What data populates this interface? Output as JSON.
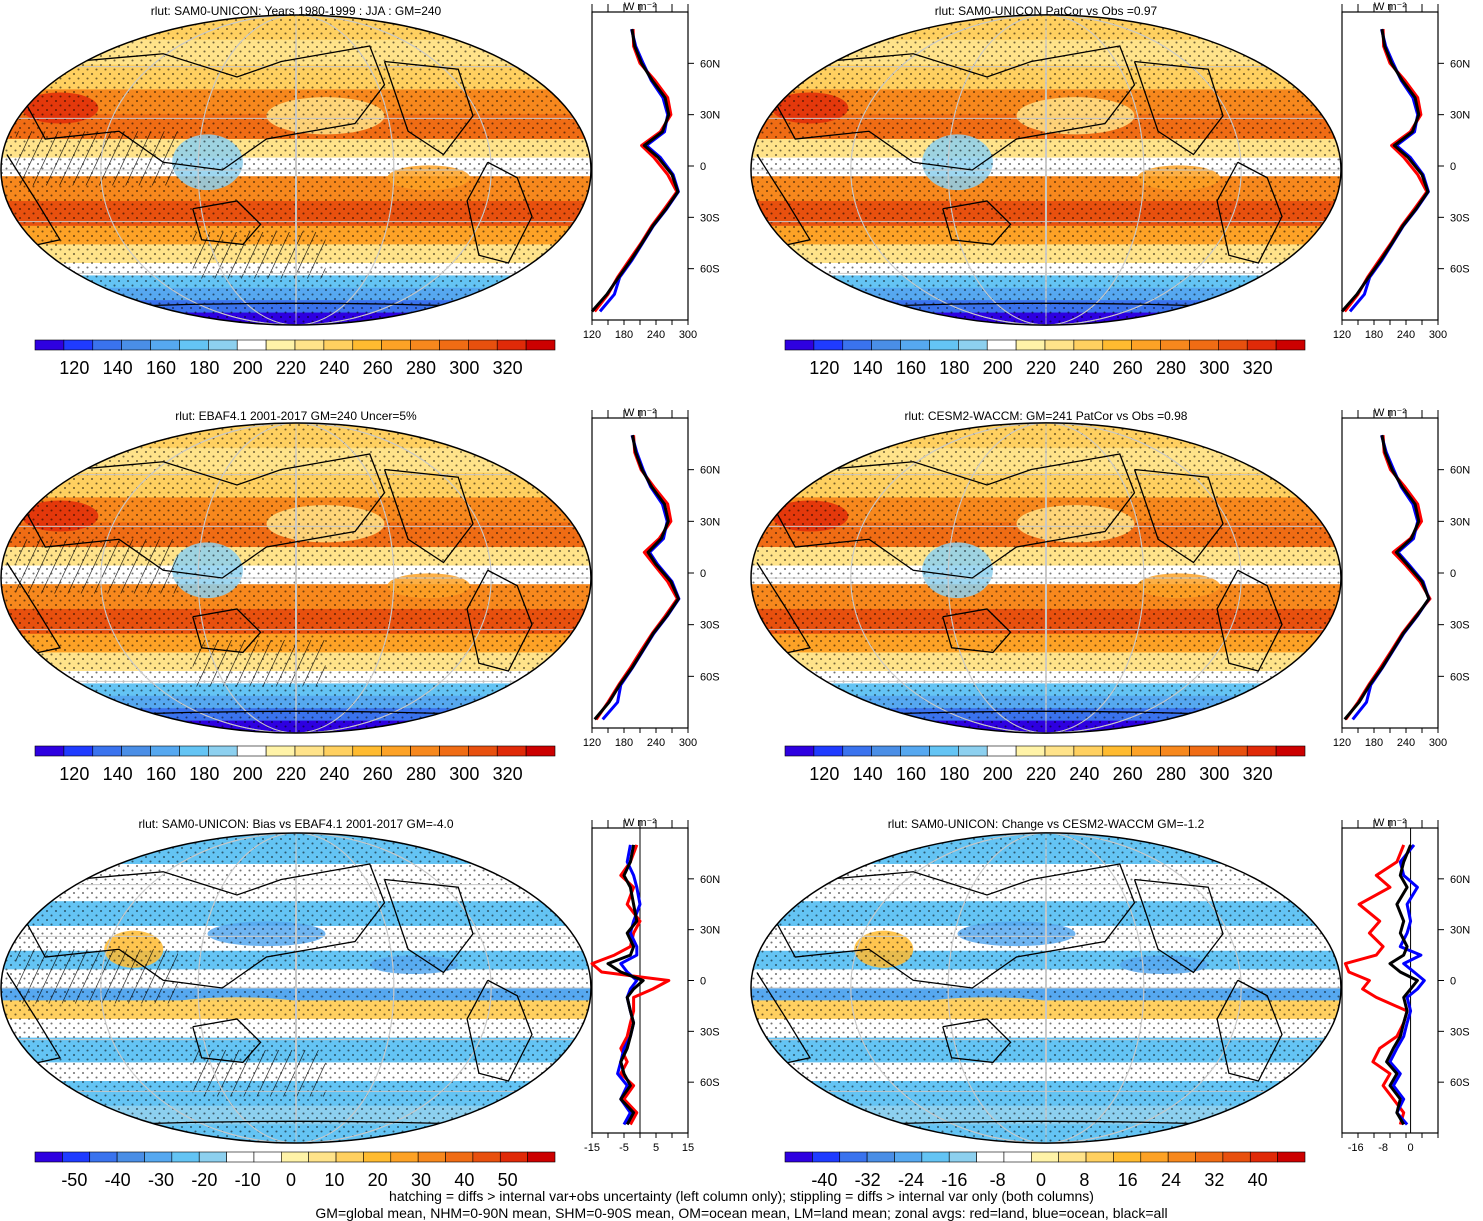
{
  "variable": "rlut",
  "units_label": "W m⁻²",
  "footer": {
    "line1": "hatching = diffs > internal var+obs uncertainty (left column only); stippling = diffs > internal var only (both columns)",
    "line2": "GM=global mean, NHM=0-90N mean, SHM=0-90S mean, OM=ocean mean, LM=land mean; zonal avgs: red=land, blue=ocean, black=all"
  },
  "colors": {
    "land": "#ff0000",
    "ocean": "#0000ff",
    "all": "#000000",
    "abs_scale": [
      "#2e00e0",
      "#1f3bff",
      "#3a73ee",
      "#4a8ee6",
      "#56a8f0",
      "#64c4f4",
      "#8dd0ef",
      "#ffffff",
      "#fff3a8",
      "#ffe38a",
      "#ffd060",
      "#ffbb30",
      "#fda226",
      "#f7881d",
      "#f06c14",
      "#e8500e",
      "#e02a08",
      "#cc0000"
    ],
    "diff_scale": [
      "#2e00e0",
      "#1f3bff",
      "#3a73ee",
      "#4a8ee6",
      "#56a8f0",
      "#64c4f4",
      "#8dd0ef",
      "#ffffff",
      "#ffffff",
      "#fff3a8",
      "#ffe38a",
      "#ffd060",
      "#ffbb30",
      "#fda226",
      "#f7881d",
      "#f06c14",
      "#e8500e",
      "#e02a08",
      "#cc0000"
    ]
  },
  "lat_ticks": [
    "60N",
    "30N",
    "0",
    "30S",
    "60S"
  ],
  "chart_data": [
    {
      "type": "heatmap",
      "title": "rlut: SAM0-UNICON: Years 1980-1999 : JJA : GM=240",
      "colorbar": {
        "scale": "abs",
        "labels": [
          "120",
          "140",
          "160",
          "180",
          "200",
          "220",
          "240",
          "260",
          "280",
          "300",
          "320"
        ]
      },
      "zonal": {
        "xticks": [
          "120",
          "180",
          "240",
          "300"
        ],
        "xlim": [
          120,
          300
        ],
        "units": "W m⁻²",
        "zero_line": false,
        "lat": [
          -85,
          -75,
          -65,
          -55,
          -45,
          -35,
          -25,
          -15,
          -5,
          5,
          12,
          20,
          30,
          40,
          50,
          60,
          70,
          80
        ],
        "all": [
          120,
          148,
          170,
          193,
          214,
          234,
          259,
          281,
          270,
          244,
          218,
          252,
          264,
          257,
          233,
          213,
          200,
          195
        ],
        "land": [
          125,
          150,
          168,
          190,
          212,
          232,
          256,
          279,
          262,
          236,
          213,
          248,
          268,
          262,
          238,
          210,
          198,
          197
        ],
        "ocean": [
          135,
          162,
          172,
          195,
          215,
          235,
          260,
          282,
          272,
          248,
          222,
          256,
          262,
          253,
          231,
          216,
          202,
          194
        ]
      }
    },
    {
      "type": "heatmap",
      "title": "rlut: SAM0-UNICON PatCor vs Obs =0.97",
      "colorbar": {
        "scale": "abs",
        "labels": [
          "120",
          "140",
          "160",
          "180",
          "200",
          "220",
          "240",
          "260",
          "280",
          "300",
          "320"
        ]
      },
      "zonal": {
        "xticks": [
          "120",
          "180",
          "240",
          "300"
        ],
        "xlim": [
          120,
          300
        ],
        "units": "W m⁻²",
        "zero_line": false,
        "lat": [
          -85,
          -75,
          -65,
          -55,
          -45,
          -35,
          -25,
          -15,
          -5,
          5,
          12,
          20,
          30,
          40,
          50,
          60,
          70,
          80
        ],
        "all": [
          120,
          148,
          170,
          193,
          214,
          234,
          259,
          281,
          270,
          244,
          218,
          252,
          264,
          257,
          233,
          213,
          200,
          195
        ],
        "land": [
          125,
          150,
          168,
          190,
          212,
          232,
          256,
          279,
          262,
          236,
          213,
          248,
          268,
          262,
          238,
          210,
          198,
          197
        ],
        "ocean": [
          135,
          162,
          172,
          195,
          215,
          235,
          260,
          282,
          272,
          248,
          222,
          256,
          262,
          253,
          231,
          216,
          202,
          194
        ]
      }
    },
    {
      "type": "heatmap",
      "title": "rlut: EBAF4.1 2001-2017 GM=240 Uncer=5%",
      "colorbar": {
        "scale": "abs",
        "labels": [
          "120",
          "140",
          "160",
          "180",
          "200",
          "220",
          "240",
          "260",
          "280",
          "300",
          "320"
        ]
      },
      "zonal": {
        "xticks": [
          "120",
          "180",
          "240",
          "300"
        ],
        "xlim": [
          120,
          300
        ],
        "units": "W m⁻²",
        "zero_line": false,
        "lat": [
          -85,
          -75,
          -65,
          -55,
          -45,
          -35,
          -25,
          -15,
          -5,
          5,
          12,
          20,
          30,
          40,
          50,
          60,
          70,
          80
        ],
        "all": [
          125,
          152,
          172,
          195,
          215,
          235,
          260,
          282,
          268,
          240,
          225,
          250,
          263,
          256,
          232,
          214,
          202,
          196
        ],
        "land": [
          128,
          150,
          170,
          192,
          212,
          233,
          257,
          280,
          262,
          236,
          218,
          246,
          268,
          262,
          236,
          212,
          200,
          198
        ],
        "ocean": [
          140,
          168,
          174,
          196,
          216,
          236,
          261,
          283,
          270,
          243,
          228,
          254,
          261,
          252,
          230,
          216,
          204,
          195
        ]
      }
    },
    {
      "type": "heatmap",
      "title": "rlut: CESM2-WACCM: GM=241 PatCor vs Obs =0.98",
      "colorbar": {
        "scale": "abs",
        "labels": [
          "120",
          "140",
          "160",
          "180",
          "200",
          "220",
          "240",
          "260",
          "280",
          "300",
          "320"
        ]
      },
      "zonal": {
        "xticks": [
          "120",
          "180",
          "240",
          "300"
        ],
        "xlim": [
          120,
          300
        ],
        "units": "W m⁻²",
        "zero_line": false,
        "lat": [
          -85,
          -75,
          -65,
          -55,
          -45,
          -35,
          -25,
          -15,
          -5,
          5,
          12,
          20,
          30,
          40,
          50,
          60,
          70,
          80
        ],
        "all": [
          125,
          152,
          172,
          195,
          215,
          235,
          260,
          283,
          270,
          242,
          222,
          250,
          264,
          257,
          233,
          214,
          201,
          195
        ],
        "land": [
          127,
          150,
          170,
          192,
          213,
          233,
          258,
          285,
          266,
          238,
          216,
          248,
          269,
          262,
          238,
          211,
          199,
          197
        ],
        "ocean": [
          140,
          166,
          174,
          196,
          216,
          236,
          261,
          283,
          272,
          245,
          225,
          254,
          262,
          253,
          231,
          217,
          203,
          194
        ]
      }
    },
    {
      "type": "heatmap",
      "title": "rlut: SAM0-UNICON: Bias vs EBAF4.1 2001-2017 GM=-4.0",
      "colorbar": {
        "scale": "diff",
        "labels": [
          "-50",
          "-40",
          "-30",
          "-20",
          "-10",
          "0",
          "10",
          "20",
          "30",
          "40",
          "50"
        ]
      },
      "zonal": {
        "xticks": [
          "-15",
          "-5",
          "5",
          "15"
        ],
        "xlim": [
          -15,
          15
        ],
        "units": "W m⁻²",
        "zero_line": true,
        "lat": [
          -85,
          -78,
          -70,
          -62,
          -55,
          -48,
          -40,
          -33,
          -25,
          -18,
          -10,
          -5,
          0,
          5,
          10,
          15,
          20,
          28,
          35,
          45,
          55,
          62,
          70,
          80
        ],
        "all": [
          -4,
          -2,
          -6,
          -3,
          -5,
          -6,
          -4,
          -3,
          -2,
          -3,
          -4,
          -2,
          1,
          -6,
          -10,
          -3,
          -2,
          -4,
          -1,
          -2,
          -3,
          -5,
          -3,
          -2
        ],
        "land": [
          -3,
          -1,
          -5,
          -2,
          -6,
          -4,
          -6,
          -4,
          -3,
          -2,
          -2,
          4,
          9,
          -12,
          -15,
          -8,
          -3,
          -2,
          0,
          -4,
          -2,
          -6,
          -3,
          -1
        ],
        "ocean": [
          -5,
          -3,
          -6,
          -4,
          -7,
          -6,
          -5,
          -3,
          -2,
          -3,
          -4,
          -3,
          -1,
          -4,
          -6,
          -1,
          -1,
          -3,
          -2,
          0,
          -1,
          -2,
          -4,
          -3
        ]
      }
    },
    {
      "type": "heatmap",
      "title": "rlut: SAM0-UNICON: Change vs CESM2-WACCM GM=-1.2",
      "colorbar": {
        "scale": "diff",
        "labels": [
          "-40",
          "-32",
          "-24",
          "-16",
          "-8",
          "0",
          "8",
          "16",
          "24",
          "32",
          "40"
        ]
      },
      "zonal": {
        "xticks": [
          "-16",
          "-8",
          "0"
        ],
        "xlim": [
          -20,
          8
        ],
        "units": "W m⁻²",
        "zero_line": true,
        "lat": [
          -85,
          -78,
          -70,
          -62,
          -55,
          -48,
          -40,
          -33,
          -25,
          -18,
          -10,
          -5,
          0,
          5,
          10,
          15,
          20,
          28,
          35,
          45,
          55,
          62,
          70,
          80
        ],
        "all": [
          -2,
          -4,
          -3,
          -6,
          -4,
          -7,
          -5,
          -3,
          -2,
          -1,
          -2,
          0,
          2,
          -3,
          -6,
          -2,
          -1,
          -3,
          -2,
          -4,
          -1,
          -3,
          -2,
          0
        ],
        "land": [
          -3,
          -2,
          -5,
          -8,
          -6,
          -11,
          -9,
          -4,
          -2,
          -1,
          -10,
          -14,
          -12,
          -18,
          -19,
          -10,
          -8,
          -12,
          -9,
          -15,
          -6,
          -10,
          -4,
          -2
        ],
        "ocean": [
          -1,
          -4,
          -2,
          -5,
          -3,
          -6,
          -4,
          -2,
          -1,
          0,
          -1,
          2,
          4,
          1,
          -2,
          3,
          -3,
          -1,
          0,
          -1,
          2,
          -2,
          -3,
          1
        ]
      }
    }
  ]
}
